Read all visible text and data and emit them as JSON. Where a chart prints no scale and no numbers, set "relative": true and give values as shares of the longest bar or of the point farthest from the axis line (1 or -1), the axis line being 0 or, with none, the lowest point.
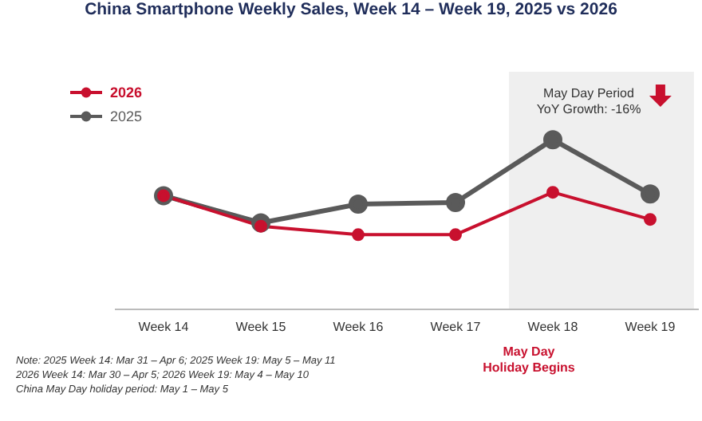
{
  "chart_data": {
    "type": "line",
    "title": "China Smartphone Weekly Sales, Week 14 – Week 19, 2025 vs 2026",
    "categories": [
      "Week 14",
      "Week 15",
      "Week 16",
      "Week 17",
      "Week 18",
      "Week 19"
    ],
    "relative": true,
    "series": [
      {
        "name": "2026",
        "color": "#c8102e",
        "values": [
          0.67,
          0.49,
          0.44,
          0.44,
          0.69,
          0.53
        ]
      },
      {
        "name": "2025",
        "color": "#5a5a5a",
        "values": [
          0.67,
          0.51,
          0.62,
          0.63,
          1,
          0.68
        ]
      }
    ],
    "bands": [
      {
        "axis": "x",
        "from": "Week 18",
        "to": "Week 19",
        "label": "May Day Period\nYoY Growth: -16%",
        "color": "#efefef"
      }
    ],
    "annotations": [
      "May Day\nHoliday Begins",
      "Note: 2025 Week 14: Mar 31 – Apr 6; 2025 Week 19: May 5 – May 11\n2026 Week 14: Mar 30 – Apr 5; 2026 Week 19: May 4 – May 10\nChina May Day holiday period: May 1 – May 5"
    ],
    "legend": "top left",
    "marker": "circle",
    "line_style": "solid",
    "grid": false
  }
}
